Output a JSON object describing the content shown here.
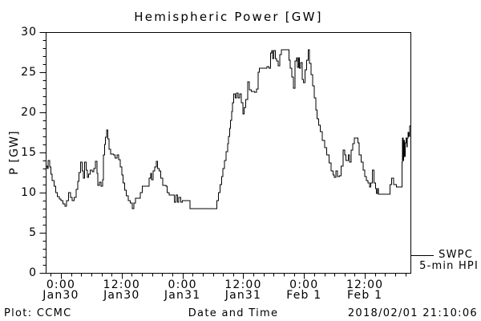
{
  "window": {
    "background": "#ffffff",
    "foreground": "#000000"
  },
  "footer": {
    "plot_credit": "Plot: CCMC",
    "timestamp": "2018/02/01 21:10:06"
  },
  "legend": {
    "source": "SWPC",
    "cadence": "5-min HPI"
  },
  "chart_data": {
    "type": "line",
    "title": "Hemispheric Power [GW]",
    "xlabel": "Date and Time",
    "ylabel": "P [GW]",
    "ylim": [
      0,
      30
    ],
    "y_major_ticks": [
      0,
      5,
      10,
      15,
      20,
      25,
      30
    ],
    "y_minor_step": 1,
    "x_range_hours": [
      0,
      72
    ],
    "x_minor_step_hours": 2,
    "x_major_ticks": [
      {
        "hour": 3,
        "time": "0:00",
        "date": "Jan30"
      },
      {
        "hour": 15,
        "time": "12:00",
        "date": "Jan30"
      },
      {
        "hour": 27,
        "time": "0:00",
        "date": "Jan31"
      },
      {
        "hour": 39,
        "time": "12:00",
        "date": "Jan31"
      },
      {
        "hour": 51,
        "time": "0:00",
        "date": "Feb 1"
      },
      {
        "hour": 63,
        "time": "12:00",
        "date": "Feb 1"
      }
    ],
    "grid": false,
    "legend_position": "right-outside",
    "line_color": "#000000",
    "series": [
      {
        "name": "SWPC 5-min HPI",
        "step": true,
        "points": [
          [
            0,
            13.3
          ],
          [
            0.3,
            13
          ],
          [
            0.5,
            14
          ],
          [
            0.8,
            13.2
          ],
          [
            1,
            12.3
          ],
          [
            1.3,
            11.5
          ],
          [
            1.7,
            10.8
          ],
          [
            2,
            10
          ],
          [
            2.3,
            9.5
          ],
          [
            2.7,
            9.2
          ],
          [
            3,
            9
          ],
          [
            3.4,
            8.6
          ],
          [
            3.8,
            8.3
          ],
          [
            4.1,
            9
          ],
          [
            4.5,
            10
          ],
          [
            4.9,
            9.4
          ],
          [
            5.2,
            9
          ],
          [
            5.6,
            9.4
          ],
          [
            6,
            10.4
          ],
          [
            6.3,
            11.4
          ],
          [
            6.6,
            12.5
          ],
          [
            6.9,
            13.8
          ],
          [
            7.2,
            12.7
          ],
          [
            7.4,
            11.8
          ],
          [
            7.7,
            13.8
          ],
          [
            8,
            12.8
          ],
          [
            8.2,
            11.9
          ],
          [
            8.5,
            12.3
          ],
          [
            8.8,
            12.8
          ],
          [
            9.2,
            12.6
          ],
          [
            9.5,
            13
          ],
          [
            9.8,
            13.9
          ],
          [
            10.1,
            12.4
          ],
          [
            10.3,
            10.9
          ],
          [
            10.6,
            11.3
          ],
          [
            10.9,
            10.8
          ],
          [
            11.2,
            11.6
          ],
          [
            11.4,
            14.7
          ],
          [
            11.6,
            16
          ],
          [
            11.8,
            16.9
          ],
          [
            12,
            17.8
          ],
          [
            12.3,
            16.7
          ],
          [
            12.5,
            15.4
          ],
          [
            12.8,
            14.8
          ],
          [
            13.4,
            14.7
          ],
          [
            13.7,
            14.3
          ],
          [
            14.1,
            14.7
          ],
          [
            14.4,
            14.1
          ],
          [
            14.7,
            13.2
          ],
          [
            15,
            12.2
          ],
          [
            15.3,
            11.2
          ],
          [
            15.6,
            10.3
          ],
          [
            15.9,
            9.6
          ],
          [
            16.3,
            9
          ],
          [
            16.7,
            8.7
          ],
          [
            17.1,
            8
          ],
          [
            17.4,
            8.7
          ],
          [
            17.7,
            9.3
          ],
          [
            18.3,
            9.3
          ],
          [
            18.7,
            10
          ],
          [
            19.1,
            10.8
          ],
          [
            19.9,
            10.8
          ],
          [
            20.4,
            11.8
          ],
          [
            20.7,
            12.4
          ],
          [
            20.9,
            11.6
          ],
          [
            21.2,
            12.7
          ],
          [
            21.5,
            13.2
          ],
          [
            21.8,
            13.9
          ],
          [
            22.1,
            13
          ],
          [
            22.4,
            12.7
          ],
          [
            22.7,
            11.8
          ],
          [
            23.1,
            10.9
          ],
          [
            23.7,
            10.8
          ],
          [
            24,
            10
          ],
          [
            24.4,
            9.7
          ],
          [
            25.1,
            9.7
          ],
          [
            25.4,
            8.8
          ],
          [
            25.7,
            9.7
          ],
          [
            26,
            8.8
          ],
          [
            26.3,
            9.4
          ],
          [
            26.7,
            8.8
          ],
          [
            27,
            9
          ],
          [
            28.2,
            9
          ],
          [
            28.5,
            8
          ],
          [
            33.5,
            8
          ],
          [
            33.8,
            9
          ],
          [
            34.1,
            10
          ],
          [
            34.4,
            11
          ],
          [
            34.7,
            12
          ],
          [
            35,
            13
          ],
          [
            35.3,
            14
          ],
          [
            35.6,
            15.1
          ],
          [
            35.9,
            16.1
          ],
          [
            36.1,
            17
          ],
          [
            36.3,
            18
          ],
          [
            36.5,
            19
          ],
          [
            36.7,
            20.1
          ],
          [
            36.9,
            21.2
          ],
          [
            37.1,
            22.3
          ],
          [
            37.4,
            21.8
          ],
          [
            37.7,
            22.4
          ],
          [
            38,
            21.8
          ],
          [
            38.3,
            22.3
          ],
          [
            38.6,
            21.2
          ],
          [
            38.9,
            19.8
          ],
          [
            39.2,
            20.6
          ],
          [
            39.5,
            21.6
          ],
          [
            39.9,
            23.8
          ],
          [
            40.2,
            22.8
          ],
          [
            40.6,
            22.6
          ],
          [
            41.2,
            22.5
          ],
          [
            41.6,
            22.9
          ],
          [
            41.9,
            25
          ],
          [
            42.2,
            25.5
          ],
          [
            43.2,
            25.5
          ],
          [
            43.7,
            25.7
          ],
          [
            44.1,
            25.5
          ],
          [
            44.4,
            27.4
          ],
          [
            44.6,
            27.7
          ],
          [
            44.8,
            26.7
          ],
          [
            45,
            27.7
          ],
          [
            45.3,
            26.7
          ],
          [
            45.6,
            26.4
          ],
          [
            45.9,
            25.8
          ],
          [
            46.2,
            27.2
          ],
          [
            46.5,
            27.8
          ],
          [
            47.7,
            27.8
          ],
          [
            48,
            26.5
          ],
          [
            48.3,
            25.5
          ],
          [
            48.6,
            24.4
          ],
          [
            48.9,
            23
          ],
          [
            49.2,
            26.4
          ],
          [
            49.5,
            26.8
          ],
          [
            49.7,
            25.6
          ],
          [
            49.9,
            26.8
          ],
          [
            50.1,
            25.5
          ],
          [
            50.3,
            26.2
          ],
          [
            50.6,
            24.1
          ],
          [
            50.9,
            23.7
          ],
          [
            51.2,
            25.3
          ],
          [
            51.5,
            26.5
          ],
          [
            51.8,
            27.8
          ],
          [
            52.1,
            26.1
          ],
          [
            52.4,
            24.7
          ],
          [
            52.7,
            23.3
          ],
          [
            53,
            21.8
          ],
          [
            53.3,
            20.3
          ],
          [
            53.6,
            19.2
          ],
          [
            53.9,
            18.4
          ],
          [
            54.2,
            17.6
          ],
          [
            54.6,
            16.5
          ],
          [
            55.1,
            15.6
          ],
          [
            55.5,
            14.7
          ],
          [
            55.9,
            13.7
          ],
          [
            56.3,
            12.7
          ],
          [
            56.7,
            12.2
          ],
          [
            57,
            11.9
          ],
          [
            57.3,
            12.7
          ],
          [
            57.6,
            12
          ],
          [
            58,
            12.1
          ],
          [
            58.3,
            13.3
          ],
          [
            58.7,
            15.3
          ],
          [
            59,
            14.7
          ],
          [
            59.3,
            14
          ],
          [
            59.7,
            14.7
          ],
          [
            60,
            13.8
          ],
          [
            60.3,
            15.3
          ],
          [
            60.6,
            16.1
          ],
          [
            60.9,
            16.8
          ],
          [
            61.3,
            16.8
          ],
          [
            61.6,
            16.2
          ],
          [
            61.9,
            14.7
          ],
          [
            62.3,
            13.8
          ],
          [
            62.7,
            12.8
          ],
          [
            63,
            12
          ],
          [
            63.3,
            11.5
          ],
          [
            63.6,
            11.2
          ],
          [
            63.9,
            10.7
          ],
          [
            64.2,
            11.2
          ],
          [
            64.5,
            12.8
          ],
          [
            64.8,
            11.2
          ],
          [
            65.1,
            10.5
          ],
          [
            65.3,
            9.9
          ],
          [
            65.5,
            10.5
          ],
          [
            65.7,
            9.8
          ],
          [
            67.6,
            9.8
          ],
          [
            68,
            11
          ],
          [
            68.3,
            11.8
          ],
          [
            68.7,
            11
          ],
          [
            69.2,
            10.7
          ],
          [
            69.8,
            10.7
          ],
          [
            70.3,
            13.8
          ],
          [
            70.45,
            16.8
          ],
          [
            70.55,
            14
          ],
          [
            70.65,
            16.5
          ],
          [
            70.8,
            14.5
          ],
          [
            70.95,
            16.2
          ],
          [
            71.1,
            16.8
          ],
          [
            71.25,
            15.7
          ],
          [
            71.4,
            16.8
          ],
          [
            71.55,
            17.5
          ],
          [
            71.7,
            17
          ],
          [
            71.85,
            18.3
          ]
        ]
      }
    ]
  }
}
